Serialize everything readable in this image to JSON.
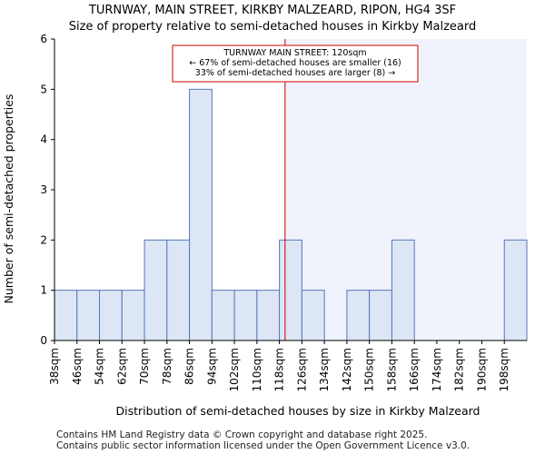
{
  "chart_data": {
    "type": "bar",
    "title": "TURNWAY, MAIN STREET, KIRKBY MALZEARD, RIPON, HG4 3SF",
    "subtitle": "Size of property relative to semi-detached houses in Kirkby Malzeard",
    "xlabel": "Distribution of semi-detached houses by size in Kirkby Malzeard",
    "ylabel": "Number of semi-detached properties",
    "categories": [
      "38sqm",
      "46sqm",
      "54sqm",
      "62sqm",
      "70sqm",
      "78sqm",
      "86sqm",
      "94sqm",
      "102sqm",
      "110sqm",
      "118sqm",
      "126sqm",
      "134sqm",
      "142sqm",
      "150sqm",
      "158sqm",
      "166sqm",
      "174sqm",
      "182sqm",
      "190sqm",
      "198sqm"
    ],
    "values": [
      1,
      1,
      1,
      1,
      2,
      2,
      5,
      1,
      1,
      1,
      2,
      1,
      0,
      1,
      1,
      2,
      0,
      0,
      0,
      0,
      2
    ],
    "ylim": [
      0,
      6
    ],
    "yticks": [
      0,
      1,
      2,
      3,
      4,
      5,
      6
    ],
    "grid": false,
    "bin_width": 8,
    "marker": {
      "value": 120,
      "label_lines": [
        "TURNWAY MAIN STREET: 120sqm",
        "← 67% of semi-detached houses are smaller (16)",
        "33% of semi-detached houses are larger (8) →"
      ]
    },
    "colors": {
      "bar_fill": "#dce6f5",
      "bar_stroke": "#5577bb",
      "marker": "#cc0000",
      "highlight_region": "#f0f3fc"
    }
  },
  "footer": {
    "line1": "Contains HM Land Registry data © Crown copyright and database right 2025.",
    "line2": "Contains public sector information licensed under the Open Government Licence v3.0."
  }
}
